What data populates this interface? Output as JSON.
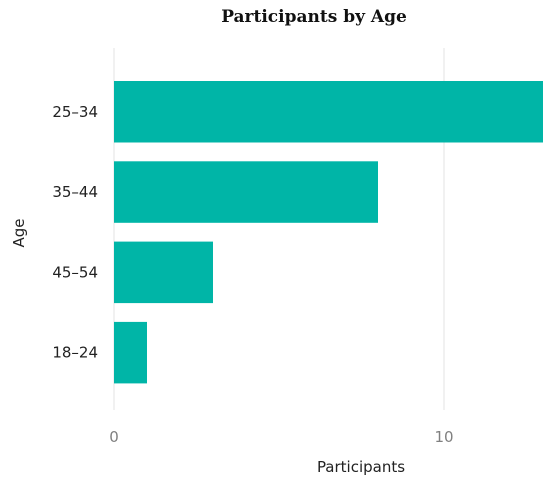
{
  "chart_data": {
    "type": "bar",
    "orientation": "horizontal",
    "title": "Participants by Age",
    "xlabel": "Participants",
    "ylabel": "Age",
    "categories": [
      "25–34",
      "35–44",
      "45–54",
      "18–24"
    ],
    "values": [
      13,
      8,
      3,
      1
    ],
    "xlim": [
      0,
      13
    ],
    "xticks": [
      0,
      10
    ],
    "grid": "vertical",
    "legend": "none",
    "colors": {
      "bar": "#00B5A7",
      "grid": "#e3e3e3",
      "x_tick_text": "#808080",
      "y_tick_text": "#222222"
    }
  }
}
